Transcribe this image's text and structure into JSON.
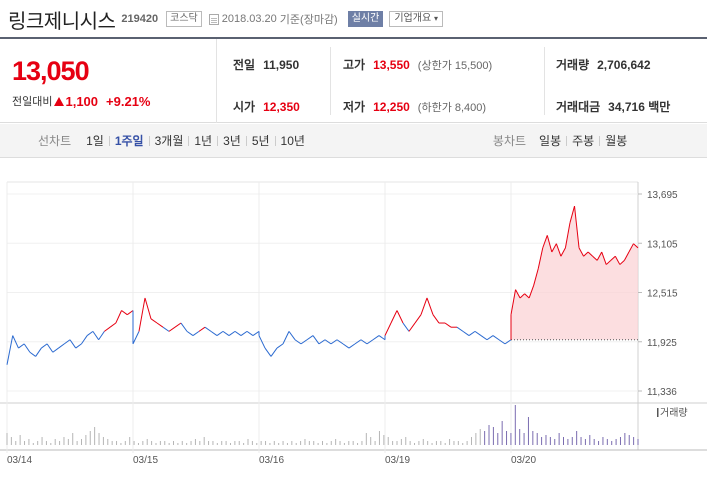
{
  "header": {
    "company": "링크제니시스",
    "code": "219420",
    "market": "코스닥",
    "date": "2018.03.20",
    "basis": "기준(장마감)",
    "realtime": "실시간",
    "corp_info": "기업개요"
  },
  "quote": {
    "price": "13,050",
    "change_label": "전일대비",
    "change_value": "1,100",
    "change_pct": "+9.21%",
    "prev_close_label": "전일",
    "prev_close": "11,950",
    "open_label": "시가",
    "open": "12,350",
    "high_label": "고가",
    "high": "13,550",
    "upper_limit": "(상한가 15,500)",
    "low_label": "저가",
    "low": "12,250",
    "lower_limit": "(하한가 8,400)",
    "volume_label": "거래량",
    "volume": "2,706,642",
    "amount_label": "거래대금",
    "amount": "34,716 백만"
  },
  "toolbar": {
    "line_chart_label": "선차트",
    "periods": [
      "1일",
      "1주일",
      "3개월",
      "1년",
      "3년",
      "5년",
      "10년"
    ],
    "active_period": "1주일",
    "candle_label": "봉차트",
    "candles": [
      "일봉",
      "주봉",
      "월봉"
    ]
  },
  "colors": {
    "up": "#e60012",
    "down": "#2b6ad0",
    "accent": "#3550a6",
    "area_fill": "#fbd3d6",
    "volume": "#7a6cb0"
  },
  "chart_data": {
    "type": "line",
    "title": "",
    "y_ticks": [
      "13,695",
      "13,105",
      "12,515",
      "11,925",
      "11,336"
    ],
    "ylim": [
      11336,
      13695
    ],
    "x_ticks": [
      "03/14",
      "03/15",
      "03/16",
      "03/19",
      "03/20"
    ],
    "prev_close": 11950,
    "volume_label": "거래량",
    "series": [
      {
        "day": "03/14",
        "values": [
          11650,
          12000,
          11850,
          11900,
          11800,
          11750,
          11850,
          11900,
          11800,
          11850,
          11900,
          11950,
          11850,
          11900,
          12000,
          12050,
          11950,
          12050,
          12100,
          12150,
          12300,
          12250,
          12300
        ]
      },
      {
        "day": "03/15",
        "values": [
          11900,
          12050,
          12450,
          12200,
          12150,
          12100,
          12050,
          12100,
          12150,
          12050,
          12000,
          12050,
          12100,
          12050,
          12000,
          12050,
          12000,
          12050,
          12000,
          12050,
          12000,
          12050
        ]
      },
      {
        "day": "03/16",
        "values": [
          12000,
          11850,
          11750,
          11850,
          11900,
          12050,
          11950,
          11900,
          11950,
          12000,
          11900,
          11950,
          11900,
          11950,
          11900,
          11850,
          11900,
          11950,
          11900,
          11950,
          12000,
          11950
        ]
      },
      {
        "day": "03/19",
        "values": [
          12000,
          12150,
          12300,
          12150,
          12050,
          12150,
          12250,
          12450,
          12250,
          12150,
          12150,
          12100,
          12100,
          12050,
          12000,
          12050,
          12000,
          11950,
          12000,
          11950,
          11900,
          11950
        ]
      },
      {
        "day": "03/20",
        "values": [
          12250,
          12550,
          12450,
          12500,
          12450,
          12600,
          12800,
          13050,
          13200,
          13000,
          13100,
          12950,
          13050,
          13350,
          13550,
          13050,
          12950,
          13000,
          12950,
          12900,
          13000,
          12850,
          12900,
          12950,
          12850,
          12900,
          13000,
          13100,
          13050
        ]
      }
    ],
    "volume": [
      0.3,
      0.2,
      0.1,
      0.25,
      0.1,
      0.15,
      0.05,
      0.1,
      0.2,
      0.1,
      0.05,
      0.15,
      0.1,
      0.2,
      0.15,
      0.3,
      0.1,
      0.15,
      0.25,
      0.35,
      0.45,
      0.3,
      0.2,
      0.15,
      0.1,
      0.1,
      0.05,
      0.1,
      0.2,
      0.1,
      0.05,
      0.1,
      0.15,
      0.1,
      0.05,
      0.1,
      0.1,
      0.05,
      0.1,
      0.05,
      0.1,
      0.05,
      0.1,
      0.15,
      0.1,
      0.2,
      0.1,
      0.1,
      0.05,
      0.1,
      0.1,
      0.05,
      0.1,
      0.1,
      0.05,
      0.15,
      0.1,
      0.05,
      0.1,
      0.1,
      0.05,
      0.1,
      0.05,
      0.1,
      0.05,
      0.1,
      0.05,
      0.1,
      0.15,
      0.1,
      0.1,
      0.05,
      0.1,
      0.05,
      0.1,
      0.15,
      0.1,
      0.05,
      0.1,
      0.1,
      0.05,
      0.1,
      0.3,
      0.2,
      0.1,
      0.35,
      0.25,
      0.2,
      0.1,
      0.1,
      0.15,
      0.2,
      0.1,
      0.05,
      0.1,
      0.15,
      0.1,
      0.05,
      0.1,
      0.1,
      0.05,
      0.15,
      0.1,
      0.1,
      0.05,
      0.1,
      0.2,
      0.3,
      0.4,
      0.35,
      0.5,
      0.45,
      0.3,
      0.6,
      0.35,
      0.3,
      1.0,
      0.4,
      0.3,
      0.7,
      0.35,
      0.3,
      0.2,
      0.25,
      0.2,
      0.15,
      0.3,
      0.2,
      0.15,
      0.2,
      0.35,
      0.2,
      0.15,
      0.25,
      0.15,
      0.1,
      0.2,
      0.15,
      0.1,
      0.15,
      0.2,
      0.3,
      0.25,
      0.2,
      0.15
    ]
  }
}
